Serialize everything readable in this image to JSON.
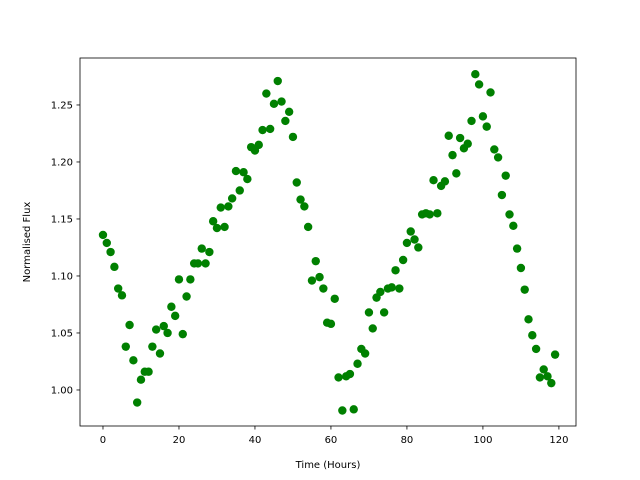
{
  "chart_data": {
    "type": "scatter",
    "x_label": "Time (Hours)",
    "y_label": "Normalised Flux",
    "color": "#008000",
    "x": [
      0,
      1,
      2,
      3,
      4,
      5,
      6,
      7,
      8,
      9,
      10,
      11,
      12,
      13,
      14,
      15,
      16,
      17,
      18,
      19,
      20,
      21,
      22,
      23,
      24,
      25,
      26,
      27,
      28,
      29,
      30,
      31,
      32,
      33,
      34,
      35,
      36,
      37,
      38,
      39,
      40,
      41,
      42,
      43,
      44,
      45,
      46,
      47,
      48,
      49,
      50,
      51,
      52,
      53,
      54,
      55,
      56,
      57,
      58,
      59,
      60,
      61,
      62,
      63,
      64,
      65,
      66,
      67,
      68,
      69,
      70,
      71,
      72,
      73,
      74,
      75,
      76,
      77,
      78,
      79,
      80,
      81,
      82,
      83,
      84,
      85,
      86,
      87,
      88,
      89,
      90,
      91,
      92,
      93,
      94,
      95,
      96,
      97,
      98,
      99,
      100,
      101,
      102,
      103,
      104,
      105,
      106,
      107,
      108,
      109,
      110,
      111,
      112,
      113,
      114,
      115,
      116,
      117,
      118,
      119
    ],
    "values": [
      1.136,
      1.129,
      1.121,
      1.108,
      1.089,
      1.083,
      1.038,
      1.057,
      1.026,
      0.989,
      1.009,
      1.016,
      1.016,
      1.038,
      1.053,
      1.032,
      1.056,
      1.05,
      1.073,
      1.065,
      1.097,
      1.049,
      1.082,
      1.097,
      1.111,
      1.111,
      1.124,
      1.111,
      1.121,
      1.148,
      1.142,
      1.16,
      1.143,
      1.161,
      1.168,
      1.192,
      1.175,
      1.191,
      1.185,
      1.213,
      1.21,
      1.215,
      1.228,
      1.26,
      1.229,
      1.251,
      1.271,
      1.253,
      1.236,
      1.244,
      1.222,
      1.182,
      1.167,
      1.161,
      1.143,
      1.096,
      1.113,
      1.099,
      1.089,
      1.059,
      1.058,
      1.08,
      1.011,
      0.982,
      1.012,
      1.014,
      0.983,
      1.023,
      1.036,
      1.032,
      1.068,
      1.054,
      1.081,
      1.086,
      1.068,
      1.089,
      1.09,
      1.105,
      1.089,
      1.114,
      1.129,
      1.139,
      1.132,
      1.125,
      1.154,
      1.155,
      1.154,
      1.184,
      1.155,
      1.179,
      1.183,
      1.223,
      1.206,
      1.19,
      1.221,
      1.212,
      1.216,
      1.236,
      1.277,
      1.268,
      1.24,
      1.231,
      1.261,
      1.211,
      1.204,
      1.171,
      1.188,
      1.154,
      1.144,
      1.124,
      1.107,
      1.088,
      1.062,
      1.048,
      1.036,
      1.011,
      1.018,
      1.012,
      1.006,
      1.031
    ],
    "xlim": [
      -6.05,
      124.5
    ],
    "ylim": [
      0.9684,
      1.2912
    ],
    "xticks": [
      0,
      20,
      40,
      60,
      80,
      100,
      120
    ],
    "yticks": [
      {
        "value": 1.0,
        "label": "1.00"
      },
      {
        "value": 1.05,
        "label": "1.05"
      },
      {
        "value": 1.1,
        "label": "1.10"
      },
      {
        "value": 1.15,
        "label": "1.15"
      },
      {
        "value": 1.2,
        "label": "1.20"
      },
      {
        "value": 1.25,
        "label": "1.25"
      }
    ]
  }
}
